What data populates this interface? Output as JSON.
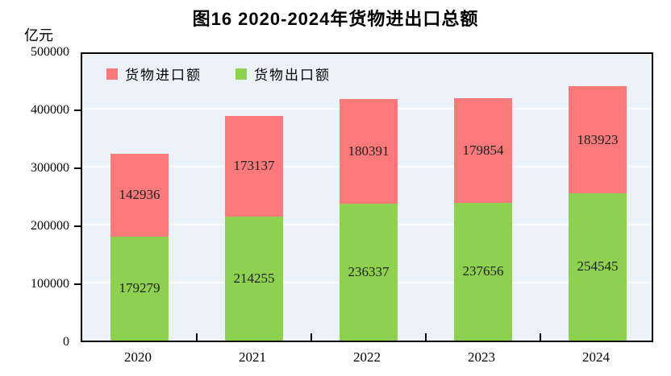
{
  "title": "图16  2020-2024年货物进出口总额",
  "y_axis_unit": "亿元",
  "chart_data": {
    "type": "bar",
    "stacked": true,
    "title": "图16  2020-2024年货物进出口总额",
    "ylabel": "亿元",
    "categories": [
      "2020",
      "2021",
      "2022",
      "2023",
      "2024"
    ],
    "series": [
      {
        "name": "货物出口额",
        "color": "#8ED050",
        "values": [
          179279,
          214255,
          236337,
          237656,
          254545
        ]
      },
      {
        "name": "货物进口额",
        "color": "#FA7A7C",
        "values": [
          142936,
          173137,
          180391,
          179854,
          183923
        ]
      }
    ],
    "legend": [
      {
        "label": "货物进口额",
        "color": "#FA7A7C"
      },
      {
        "label": "货物出口额",
        "color": "#8ED050"
      }
    ],
    "legend_position": "top-left-inside",
    "ylim": [
      0,
      500000
    ],
    "yticks": [
      0,
      100000,
      200000,
      300000,
      400000,
      500000
    ],
    "grid": true,
    "plot_background": "#EBF3F8",
    "gridline_color": "#FFFFFF",
    "border_color": "#000000"
  }
}
